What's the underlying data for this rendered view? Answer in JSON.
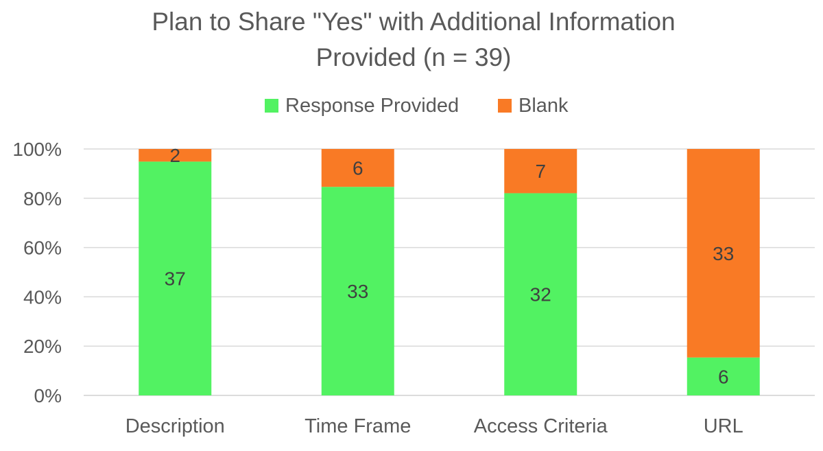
{
  "chart_data": {
    "type": "bar",
    "stacked": true,
    "percent_stacked": true,
    "title_lines": [
      "Plan to Share \"Yes\" with Additional Information",
      "Provided (n = 39)"
    ],
    "categories": [
      "Description",
      "Time Frame",
      "Access Criteria",
      "URL"
    ],
    "series": [
      {
        "name": "Response Provided",
        "values": [
          37,
          33,
          32,
          6
        ],
        "color": "#52f262"
      },
      {
        "name": "Blank",
        "values": [
          2,
          6,
          7,
          33
        ],
        "color": "#f97a25"
      }
    ],
    "y_ticks": [
      "0%",
      "20%",
      "40%",
      "60%",
      "80%",
      "100%"
    ],
    "ylim": [
      0,
      100
    ],
    "grid": true,
    "legend": "top-center",
    "data_labels": true
  }
}
